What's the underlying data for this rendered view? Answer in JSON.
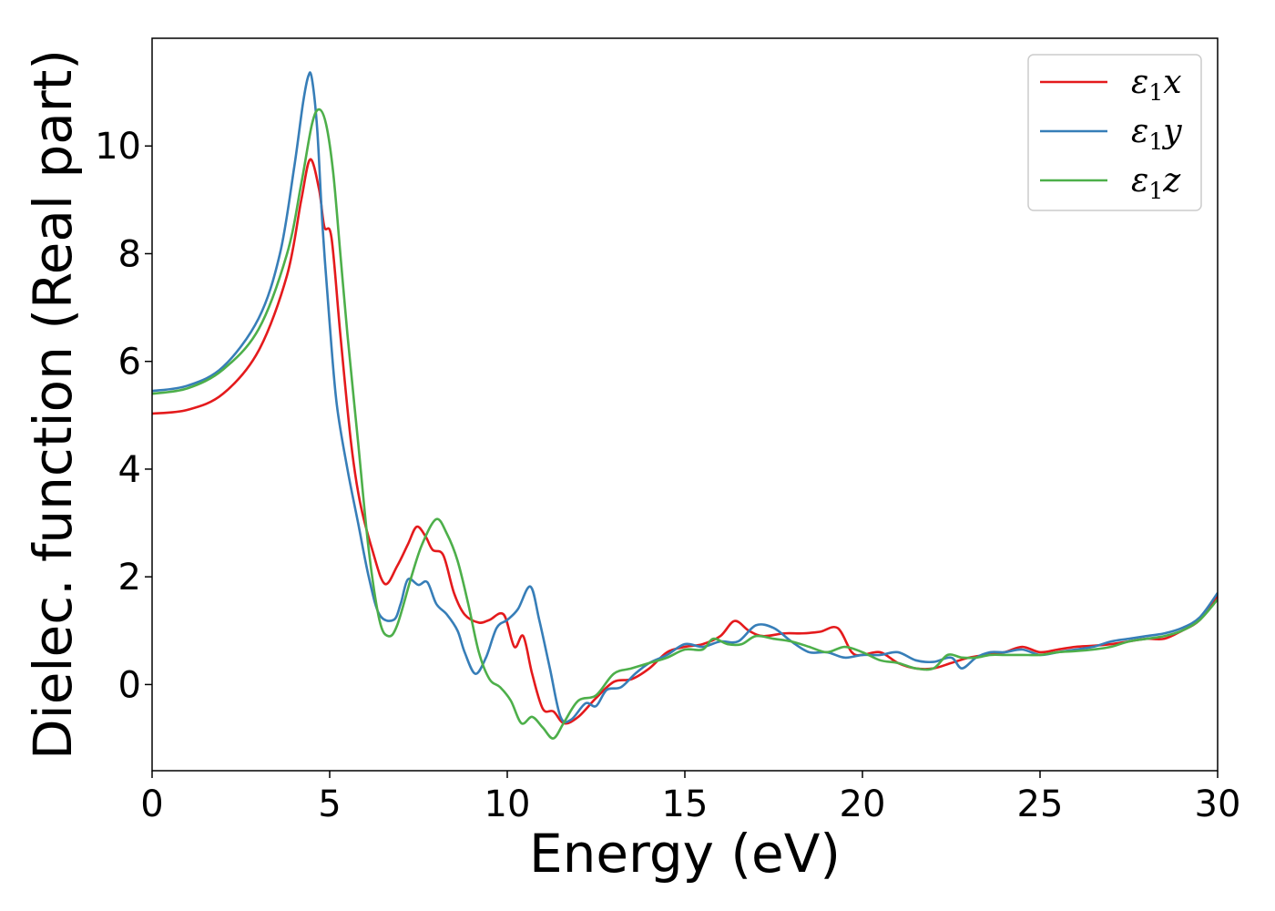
{
  "chart_data": {
    "type": "line",
    "title": "",
    "xlabel": "Energy (eV)",
    "ylabel": "Dielec. function (Real part)",
    "xlim": [
      0,
      30
    ],
    "ylim": [
      -1.6,
      12.0
    ],
    "xticks": [
      0,
      5,
      10,
      15,
      20,
      25,
      30
    ],
    "xtick_labels": [
      "0",
      "5",
      "10",
      "15",
      "20",
      "25",
      "30"
    ],
    "yticks": [
      0,
      2,
      4,
      6,
      8,
      10
    ],
    "ytick_labels": [
      "0",
      "2",
      "4",
      "6",
      "8",
      "10"
    ],
    "grid": false,
    "legend_position": "top-right",
    "series": [
      {
        "name": "ε1x",
        "legend_base": "ε",
        "legend_sub": "1",
        "legend_tail": "x",
        "color": "#e41a1c",
        "points": [
          [
            0,
            5.03
          ],
          [
            1,
            5.1
          ],
          [
            2,
            5.4
          ],
          [
            3,
            6.2
          ],
          [
            3.8,
            7.6
          ],
          [
            4.2,
            9.0
          ],
          [
            4.45,
            9.75
          ],
          [
            4.7,
            9.2
          ],
          [
            4.85,
            8.5
          ],
          [
            5.05,
            8.3
          ],
          [
            5.3,
            6.5
          ],
          [
            5.6,
            4.5
          ],
          [
            5.85,
            3.4
          ],
          [
            6.2,
            2.5
          ],
          [
            6.55,
            1.87
          ],
          [
            6.9,
            2.2
          ],
          [
            7.2,
            2.6
          ],
          [
            7.45,
            2.93
          ],
          [
            7.7,
            2.75
          ],
          [
            7.9,
            2.5
          ],
          [
            8.2,
            2.4
          ],
          [
            8.5,
            1.7
          ],
          [
            8.8,
            1.3
          ],
          [
            9.2,
            1.15
          ],
          [
            9.5,
            1.2
          ],
          [
            9.9,
            1.3
          ],
          [
            10.2,
            0.7
          ],
          [
            10.45,
            0.9
          ],
          [
            10.7,
            0.2
          ],
          [
            11.0,
            -0.45
          ],
          [
            11.3,
            -0.5
          ],
          [
            11.6,
            -0.72
          ],
          [
            12.0,
            -0.6
          ],
          [
            12.5,
            -0.25
          ],
          [
            13.0,
            0.05
          ],
          [
            13.5,
            0.1
          ],
          [
            14.0,
            0.3
          ],
          [
            14.5,
            0.6
          ],
          [
            15.0,
            0.7
          ],
          [
            15.5,
            0.75
          ],
          [
            16.0,
            0.9
          ],
          [
            16.4,
            1.18
          ],
          [
            16.8,
            1.0
          ],
          [
            17.2,
            0.9
          ],
          [
            17.8,
            0.95
          ],
          [
            18.3,
            0.95
          ],
          [
            18.8,
            0.98
          ],
          [
            19.3,
            1.05
          ],
          [
            19.7,
            0.6
          ],
          [
            20.0,
            0.55
          ],
          [
            20.5,
            0.6
          ],
          [
            21.0,
            0.4
          ],
          [
            21.5,
            0.3
          ],
          [
            22.0,
            0.3
          ],
          [
            22.5,
            0.4
          ],
          [
            23.0,
            0.5
          ],
          [
            23.5,
            0.55
          ],
          [
            24.0,
            0.6
          ],
          [
            24.5,
            0.7
          ],
          [
            25.0,
            0.6
          ],
          [
            25.5,
            0.65
          ],
          [
            26.0,
            0.7
          ],
          [
            26.5,
            0.72
          ],
          [
            27.0,
            0.75
          ],
          [
            27.5,
            0.8
          ],
          [
            28.0,
            0.85
          ],
          [
            28.5,
            0.85
          ],
          [
            29.0,
            1.0
          ],
          [
            29.5,
            1.2
          ],
          [
            30.0,
            1.65
          ]
        ]
      },
      {
        "name": "ε1y",
        "legend_base": "ε",
        "legend_sub": "1",
        "legend_tail": "y",
        "color": "#377eb8",
        "points": [
          [
            0,
            5.45
          ],
          [
            1,
            5.55
          ],
          [
            2,
            5.9
          ],
          [
            3,
            6.8
          ],
          [
            3.6,
            8.0
          ],
          [
            4.0,
            9.6
          ],
          [
            4.25,
            10.8
          ],
          [
            4.4,
            11.3
          ],
          [
            4.5,
            11.25
          ],
          [
            4.65,
            10.3
          ],
          [
            4.8,
            8.5
          ],
          [
            5.0,
            6.7
          ],
          [
            5.2,
            5.2
          ],
          [
            5.5,
            4.0
          ],
          [
            5.8,
            3.0
          ],
          [
            6.1,
            2.0
          ],
          [
            6.4,
            1.3
          ],
          [
            6.8,
            1.2
          ],
          [
            7.0,
            1.5
          ],
          [
            7.2,
            1.95
          ],
          [
            7.5,
            1.85
          ],
          [
            7.75,
            1.9
          ],
          [
            8.0,
            1.5
          ],
          [
            8.3,
            1.3
          ],
          [
            8.6,
            1.0
          ],
          [
            8.8,
            0.6
          ],
          [
            9.1,
            0.2
          ],
          [
            9.4,
            0.5
          ],
          [
            9.7,
            1.05
          ],
          [
            10.0,
            1.2
          ],
          [
            10.3,
            1.4
          ],
          [
            10.65,
            1.82
          ],
          [
            10.9,
            1.2
          ],
          [
            11.2,
            0.3
          ],
          [
            11.5,
            -0.6
          ],
          [
            11.8,
            -0.65
          ],
          [
            12.2,
            -0.35
          ],
          [
            12.5,
            -0.4
          ],
          [
            12.8,
            -0.1
          ],
          [
            13.2,
            -0.05
          ],
          [
            13.6,
            0.2
          ],
          [
            14.0,
            0.4
          ],
          [
            14.5,
            0.55
          ],
          [
            15.0,
            0.75
          ],
          [
            15.5,
            0.7
          ],
          [
            16.0,
            0.8
          ],
          [
            16.5,
            0.8
          ],
          [
            17.0,
            1.1
          ],
          [
            17.5,
            1.05
          ],
          [
            18.0,
            0.8
          ],
          [
            18.5,
            0.6
          ],
          [
            19.0,
            0.6
          ],
          [
            19.5,
            0.5
          ],
          [
            20.0,
            0.55
          ],
          [
            20.5,
            0.55
          ],
          [
            21.0,
            0.6
          ],
          [
            21.5,
            0.45
          ],
          [
            22.0,
            0.42
          ],
          [
            22.5,
            0.5
          ],
          [
            22.8,
            0.3
          ],
          [
            23.2,
            0.5
          ],
          [
            23.6,
            0.6
          ],
          [
            24.0,
            0.6
          ],
          [
            24.5,
            0.65
          ],
          [
            25.0,
            0.55
          ],
          [
            25.5,
            0.6
          ],
          [
            26.0,
            0.65
          ],
          [
            26.5,
            0.7
          ],
          [
            27.0,
            0.8
          ],
          [
            27.5,
            0.85
          ],
          [
            28.0,
            0.9
          ],
          [
            28.5,
            0.95
          ],
          [
            29.0,
            1.05
          ],
          [
            29.5,
            1.25
          ],
          [
            30.0,
            1.7
          ]
        ]
      },
      {
        "name": "ε1z",
        "legend_base": "ε",
        "legend_sub": "1",
        "legend_tail": "z",
        "color": "#4daf4a",
        "points": [
          [
            0,
            5.4
          ],
          [
            1,
            5.5
          ],
          [
            2,
            5.85
          ],
          [
            3,
            6.6
          ],
          [
            3.8,
            8.0
          ],
          [
            4.2,
            9.3
          ],
          [
            4.5,
            10.4
          ],
          [
            4.7,
            10.68
          ],
          [
            4.9,
            10.4
          ],
          [
            5.1,
            9.5
          ],
          [
            5.3,
            8.0
          ],
          [
            5.5,
            6.5
          ],
          [
            5.8,
            4.5
          ],
          [
            6.1,
            2.5
          ],
          [
            6.4,
            1.2
          ],
          [
            6.65,
            0.9
          ],
          [
            6.9,
            1.1
          ],
          [
            7.3,
            2.0
          ],
          [
            7.6,
            2.6
          ],
          [
            8.0,
            3.07
          ],
          [
            8.3,
            2.8
          ],
          [
            8.6,
            2.3
          ],
          [
            8.9,
            1.5
          ],
          [
            9.2,
            0.6
          ],
          [
            9.5,
            0.1
          ],
          [
            9.8,
            -0.05
          ],
          [
            10.1,
            -0.3
          ],
          [
            10.4,
            -0.72
          ],
          [
            10.7,
            -0.6
          ],
          [
            11.0,
            -0.8
          ],
          [
            11.3,
            -1.0
          ],
          [
            11.6,
            -0.7
          ],
          [
            12.0,
            -0.3
          ],
          [
            12.5,
            -0.2
          ],
          [
            13.0,
            0.2
          ],
          [
            13.5,
            0.3
          ],
          [
            14.0,
            0.4
          ],
          [
            14.5,
            0.5
          ],
          [
            15.0,
            0.65
          ],
          [
            15.5,
            0.65
          ],
          [
            15.8,
            0.85
          ],
          [
            16.2,
            0.75
          ],
          [
            16.6,
            0.75
          ],
          [
            17.0,
            0.9
          ],
          [
            17.5,
            0.85
          ],
          [
            18.0,
            0.8
          ],
          [
            18.5,
            0.7
          ],
          [
            19.0,
            0.6
          ],
          [
            19.5,
            0.7
          ],
          [
            20.0,
            0.6
          ],
          [
            20.5,
            0.45
          ],
          [
            21.0,
            0.4
          ],
          [
            21.5,
            0.3
          ],
          [
            22.0,
            0.3
          ],
          [
            22.4,
            0.55
          ],
          [
            22.8,
            0.5
          ],
          [
            23.2,
            0.5
          ],
          [
            23.6,
            0.55
          ],
          [
            24.0,
            0.55
          ],
          [
            24.5,
            0.55
          ],
          [
            25.0,
            0.55
          ],
          [
            25.5,
            0.6
          ],
          [
            26.0,
            0.62
          ],
          [
            26.5,
            0.65
          ],
          [
            27.0,
            0.7
          ],
          [
            27.5,
            0.8
          ],
          [
            28.0,
            0.85
          ],
          [
            28.5,
            0.9
          ],
          [
            29.0,
            1.0
          ],
          [
            29.5,
            1.2
          ],
          [
            30.0,
            1.58
          ]
        ]
      }
    ]
  }
}
